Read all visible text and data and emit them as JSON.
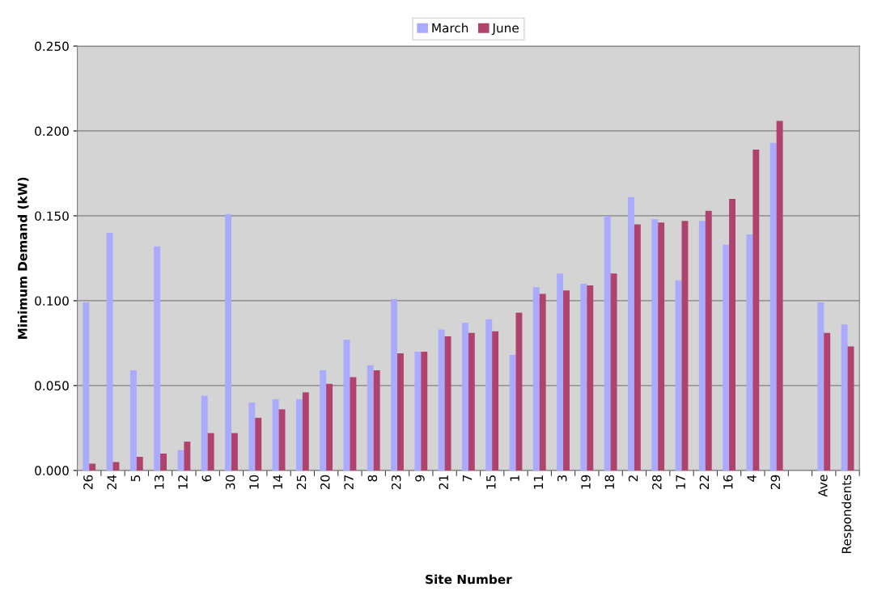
{
  "chart_data": {
    "type": "bar",
    "xlabel": "Site Number",
    "ylabel": "Minimum Demand (kW)",
    "categories": [
      "26",
      "24",
      "5",
      "13",
      "12",
      "6",
      "30",
      "10",
      "14",
      "25",
      "20",
      "27",
      "8",
      "23",
      "9",
      "21",
      "7",
      "15",
      "1",
      "11",
      "3",
      "19",
      "18",
      "2",
      "28",
      "17",
      "22",
      "16",
      "4",
      "29",
      null,
      "Ave",
      "Respondents"
    ],
    "series": [
      {
        "name": "March",
        "color": "#aaaaff",
        "values": [
          0.099,
          0.14,
          0.059,
          0.132,
          0.012,
          0.044,
          0.151,
          0.04,
          0.042,
          0.042,
          0.059,
          0.077,
          0.062,
          0.101,
          0.07,
          0.083,
          0.087,
          0.089,
          0.068,
          0.108,
          0.116,
          0.11,
          0.15,
          0.161,
          0.148,
          0.112,
          0.147,
          0.133,
          0.139,
          0.193,
          null,
          0.099,
          0.086
        ]
      },
      {
        "name": "June",
        "color": "#b0426e",
        "values": [
          0.004,
          0.005,
          0.008,
          0.01,
          0.017,
          0.022,
          0.022,
          0.031,
          0.036,
          0.046,
          0.051,
          0.055,
          0.059,
          0.069,
          0.07,
          0.079,
          0.081,
          0.082,
          0.093,
          0.104,
          0.106,
          0.109,
          0.116,
          0.145,
          0.146,
          0.147,
          0.153,
          0.16,
          0.189,
          0.206,
          null,
          0.081,
          0.073
        ]
      }
    ],
    "ylim": [
      0,
      0.25
    ],
    "yticks": [
      {
        "value": 0,
        "label": "0.000"
      },
      {
        "value": 0.05,
        "label": "0.050"
      },
      {
        "value": 0.1,
        "label": "0.100"
      },
      {
        "value": 0.15,
        "label": "0.150"
      },
      {
        "value": 0.2,
        "label": "0.200"
      },
      {
        "value": 0.25,
        "label": "0.250"
      }
    ],
    "grid": "y",
    "legend": "top"
  }
}
